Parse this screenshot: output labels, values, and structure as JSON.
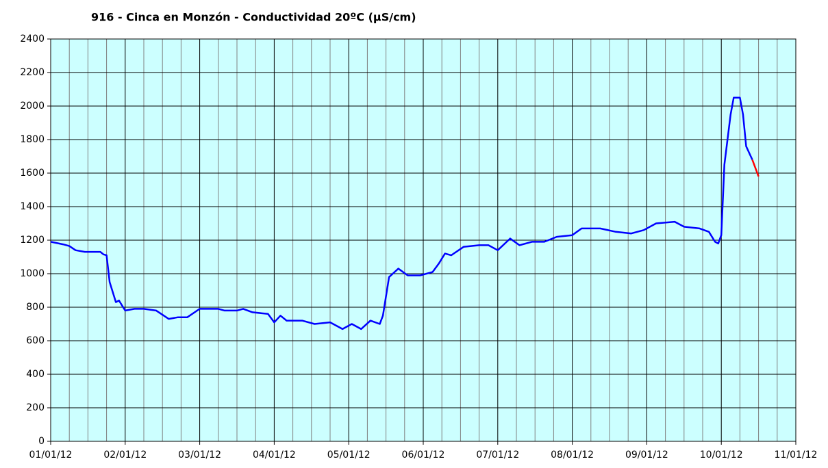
{
  "chart_data": {
    "type": "line",
    "title": "916 - Cinca en Monzón - Conductividad 20ºC (µS/cm)",
    "xlim": [
      "2012-01-01T00:00",
      "2012-01-11T00:00"
    ],
    "xticks": [
      {
        "value": "2012-01-01T00:00",
        "label": "01/01/12"
      },
      {
        "value": "2012-01-02T00:00",
        "label": "02/01/12"
      },
      {
        "value": "2012-01-03T00:00",
        "label": "03/01/12"
      },
      {
        "value": "2012-01-04T00:00",
        "label": "04/01/12"
      },
      {
        "value": "2012-01-05T00:00",
        "label": "05/01/12"
      },
      {
        "value": "2012-01-06T00:00",
        "label": "06/01/12"
      },
      {
        "value": "2012-01-07T00:00",
        "label": "07/01/12"
      },
      {
        "value": "2012-01-08T00:00",
        "label": "08/01/12"
      },
      {
        "value": "2012-01-09T00:00",
        "label": "09/01/12"
      },
      {
        "value": "2012-01-10T00:00",
        "label": "10/01/12"
      },
      {
        "value": "2012-01-11T00:00",
        "label": "11/01/12"
      }
    ],
    "ylim": [
      0,
      2400
    ],
    "yticks": [
      0,
      200,
      400,
      600,
      800,
      1000,
      1200,
      1400,
      1600,
      1800,
      2000,
      2200,
      2400
    ],
    "grid": true,
    "background": "#ccffff",
    "series": [
      {
        "color": "#0000ff",
        "x": [
          "2012-01-01T00:00",
          "2012-01-01T04:00",
          "2012-01-01T06:00",
          "2012-01-01T08:00",
          "2012-01-01T11:00",
          "2012-01-01T16:00",
          "2012-01-01T17:00",
          "2012-01-01T18:00",
          "2012-01-01T19:00",
          "2012-01-01T21:00",
          "2012-01-01T22:00",
          "2012-01-02T00:00",
          "2012-01-02T03:00",
          "2012-01-02T06:00",
          "2012-01-02T10:00",
          "2012-01-02T14:00",
          "2012-01-02T17:00",
          "2012-01-02T20:00",
          "2012-01-03T00:00",
          "2012-01-03T06:00",
          "2012-01-03T08:00",
          "2012-01-03T12:00",
          "2012-01-03T14:00",
          "2012-01-03T17:00",
          "2012-01-03T22:00",
          "2012-01-04T00:00",
          "2012-01-04T02:00",
          "2012-01-04T04:00",
          "2012-01-04T09:00",
          "2012-01-04T13:00",
          "2012-01-04T18:00",
          "2012-01-04T20:00",
          "2012-01-04T22:00",
          "2012-01-05T01:00",
          "2012-01-05T04:00",
          "2012-01-05T07:00",
          "2012-01-05T10:00",
          "2012-01-05T11:00",
          "2012-01-05T13:00",
          "2012-01-05T16:00",
          "2012-01-05T19:00",
          "2012-01-05T23:00",
          "2012-01-06T03:00",
          "2012-01-06T05:00",
          "2012-01-06T07:00",
          "2012-01-06T09:00",
          "2012-01-06T13:00",
          "2012-01-06T18:00",
          "2012-01-06T21:00",
          "2012-01-07T00:00",
          "2012-01-07T04:00",
          "2012-01-07T07:00",
          "2012-01-07T11:00",
          "2012-01-07T15:00",
          "2012-01-07T19:00",
          "2012-01-08T00:00",
          "2012-01-08T03:00",
          "2012-01-08T09:00",
          "2012-01-08T14:00",
          "2012-01-08T19:00",
          "2012-01-08T23:00",
          "2012-01-09T03:00",
          "2012-01-09T09:00",
          "2012-01-09T12:00",
          "2012-01-09T17:00",
          "2012-01-09T20:00",
          "2012-01-09T22:00",
          "2012-01-09T23:00",
          "2012-01-10T00:00",
          "2012-01-10T01:00",
          "2012-01-10T03:00",
          "2012-01-10T04:00",
          "2012-01-10T06:00",
          "2012-01-10T07:00",
          "2012-01-10T08:00",
          "2012-01-10T09:00",
          "2012-01-10T10:00"
        ],
        "values": [
          1190,
          1175,
          1165,
          1140,
          1130,
          1130,
          1115,
          1110,
          950,
          830,
          840,
          780,
          790,
          790,
          780,
          730,
          740,
          740,
          790,
          790,
          780,
          780,
          790,
          770,
          760,
          710,
          750,
          720,
          720,
          700,
          710,
          690,
          670,
          700,
          670,
          720,
          700,
          750,
          980,
          1030,
          990,
          990,
          1010,
          1060,
          1120,
          1110,
          1160,
          1170,
          1170,
          1140,
          1210,
          1170,
          1190,
          1190,
          1220,
          1230,
          1270,
          1270,
          1250,
          1240,
          1260,
          1300,
          1310,
          1280,
          1270,
          1250,
          1190,
          1180,
          1230,
          1650,
          1950,
          2050,
          2050,
          1950,
          1760,
          1720,
          1680
        ]
      },
      {
        "color": "#ff0000",
        "x": [
          "2012-01-10T10:00",
          "2012-01-10T12:00"
        ],
        "values": [
          1680,
          1580
        ]
      }
    ]
  }
}
